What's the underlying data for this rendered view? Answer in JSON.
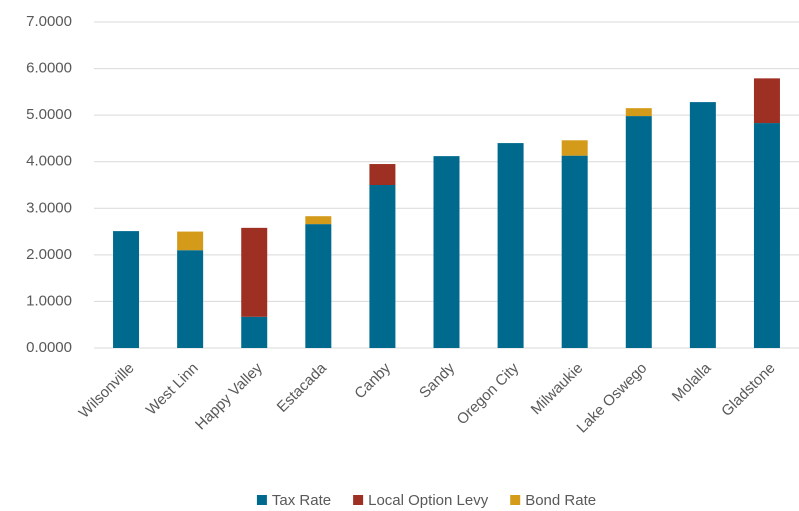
{
  "chart_data": {
    "type": "stacked_bar",
    "categories": [
      "Wilsonville",
      "West Linn",
      "Happy Valley",
      "Estacada",
      "Canby",
      "Sandy",
      "Oregon City",
      "Milwaukie",
      "Lake Oswego",
      "Molalla",
      "Gladstone"
    ],
    "series": [
      {
        "name": "Tax Rate",
        "color": "#006a8e",
        "values": [
          2.51,
          2.1,
          0.67,
          2.66,
          3.5,
          4.12,
          4.4,
          4.13,
          4.98,
          5.28,
          4.83
        ]
      },
      {
        "name": "Local Option Levy",
        "color": "#9e2f23",
        "values": [
          null,
          null,
          1.91,
          null,
          0.45,
          null,
          null,
          null,
          null,
          null,
          0.96
        ]
      },
      {
        "name": "Bond Rate",
        "color": "#d49a1a",
        "values": [
          null,
          0.4,
          null,
          0.17,
          null,
          null,
          null,
          0.33,
          0.17,
          null,
          null
        ]
      }
    ],
    "ylim": [
      0,
      7
    ],
    "yticks": [
      {
        "value": 0,
        "label": "0.0000"
      },
      {
        "value": 1,
        "label": "1.0000"
      },
      {
        "value": 2,
        "label": "2.0000"
      },
      {
        "value": 3,
        "label": "3.0000"
      },
      {
        "value": 4,
        "label": "4.0000"
      },
      {
        "value": 5,
        "label": "5.0000"
      },
      {
        "value": 6,
        "label": "6.0000"
      },
      {
        "value": 7,
        "label": "7.0000"
      }
    ],
    "grid": true,
    "legend": "bottom"
  }
}
